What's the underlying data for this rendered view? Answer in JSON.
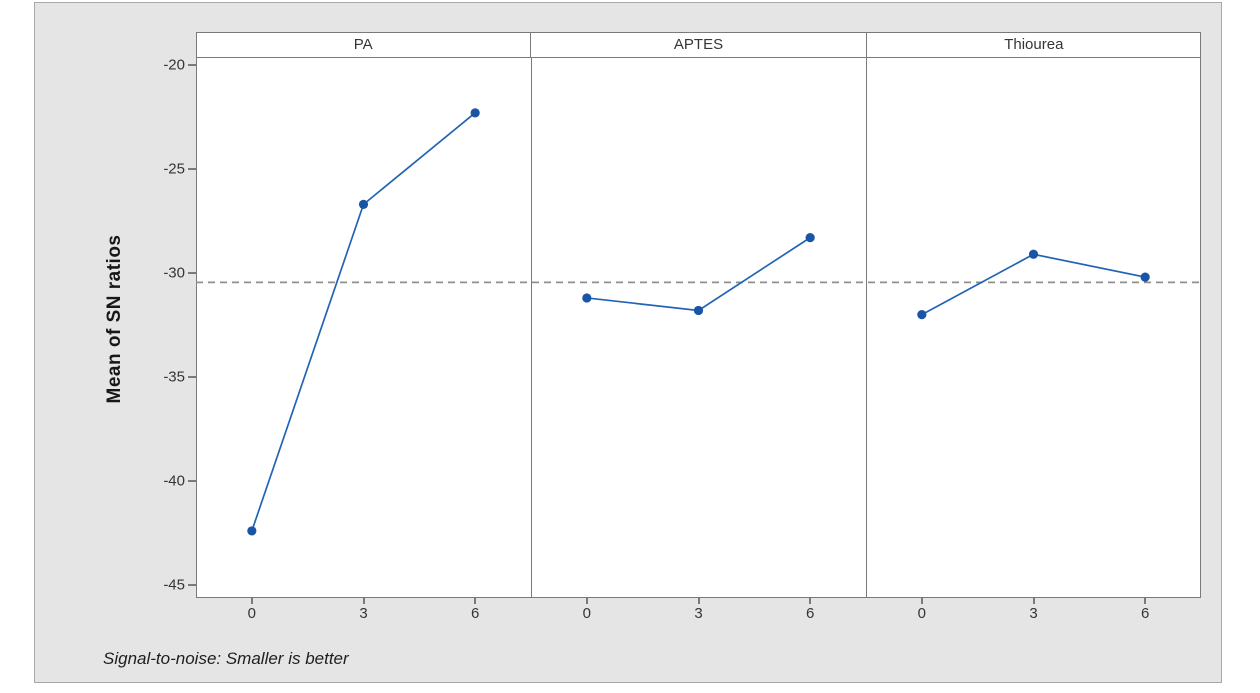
{
  "chart_data": {
    "type": "line",
    "title": "",
    "panels": [
      {
        "label": "PA"
      },
      {
        "label": "APTES"
      },
      {
        "label": "Thiourea"
      }
    ],
    "categories": [
      "0",
      "3",
      "6"
    ],
    "series": [
      {
        "name": "PA",
        "values": [
          -42.4,
          -26.7,
          -22.3
        ]
      },
      {
        "name": "APTES",
        "values": [
          -31.2,
          -31.8,
          -28.3
        ]
      },
      {
        "name": "Thiourea",
        "values": [
          -32.0,
          -29.1,
          -30.2
        ]
      }
    ],
    "reference_line": -30.45,
    "ylabel": "Mean of SN ratios",
    "y_ticks": [
      {
        "label": "-20",
        "value": -20
      },
      {
        "label": "-25",
        "value": -25
      },
      {
        "label": "-30",
        "value": -30
      },
      {
        "label": "-35",
        "value": -35
      },
      {
        "label": "-40",
        "value": -40
      },
      {
        "label": "-45",
        "value": -45
      }
    ],
    "ylim": [
      -45.6,
      -19.7
    ],
    "grid": false,
    "legend": "none",
    "footnote": "Signal-to-noise: Smaller is better",
    "colors": {
      "line": "#2264b4",
      "marker": "#1a55a5",
      "reference": "#8f8f8f",
      "frame": "#7a7a7a",
      "panel_background": "#ffffff",
      "surface_background": "#e4e5e4",
      "text": "#353535"
    }
  }
}
